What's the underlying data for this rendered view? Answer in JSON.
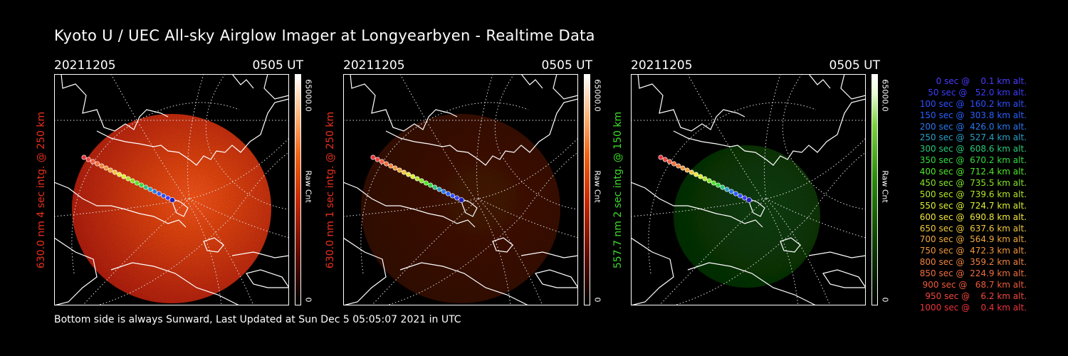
{
  "title": "Kyoto U / UEC All-sky Airglow Imager at Longyearbyen - Realtime Data",
  "footer": "Bottom side is always Sunward, Last Updated at Sun Dec  5 05:05:07 2021 in UTC",
  "panels": [
    {
      "date": "20211205",
      "time": "0505 UT",
      "ylabel": "630.0 nm 4 sec intg. @ 250 km",
      "label_color": "#e8301c",
      "cb_max": "65000.0",
      "cb_unit": "Raw Cnt",
      "cb_min": "0",
      "colormap": "red",
      "brightness": 0.78
    },
    {
      "date": "20211205",
      "time": "0505 UT",
      "ylabel": "630.0 nm 1 sec intg. @ 250 km",
      "label_color": "#e8301c",
      "cb_max": "65000.0",
      "cb_unit": "Raw Cnt",
      "cb_min": "0",
      "colormap": "red",
      "brightness": 0.22
    },
    {
      "date": "20211205",
      "time": "0505 UT",
      "ylabel": "557.7 nm 2 sec intg. @ 150 km",
      "label_color": "#3cdc28",
      "cb_max": "65000.0",
      "cb_unit": "Raw Cnt",
      "cb_min": "0",
      "colormap": "green",
      "brightness": 0.32
    }
  ],
  "legend": [
    {
      "text": "   0 sec @    0.1 km alt.",
      "color": "#4a3cff"
    },
    {
      "text": "  50 sec @   52.0 km alt.",
      "color": "#3c3cff"
    },
    {
      "text": " 100 sec @  160.2 km alt.",
      "color": "#2c50ff"
    },
    {
      "text": " 150 sec @  303.8 km alt.",
      "color": "#2860ff"
    },
    {
      "text": " 200 sec @  426.0 km alt.",
      "color": "#2878f0"
    },
    {
      "text": " 250 sec @  527.4 km alt.",
      "color": "#28a0c8"
    },
    {
      "text": " 300 sec @  608.6 km alt.",
      "color": "#28c878"
    },
    {
      "text": " 350 sec @  670.2 km alt.",
      "color": "#32dc3c"
    },
    {
      "text": " 400 sec @  712.4 km alt.",
      "color": "#50e628"
    },
    {
      "text": " 450 sec @  735.5 km alt.",
      "color": "#82e628"
    },
    {
      "text": " 500 sec @  739.6 km alt.",
      "color": "#b4e628"
    },
    {
      "text": " 550 sec @  724.7 km alt.",
      "color": "#dcf032"
    },
    {
      "text": " 600 sec @  690.8 km alt.",
      "color": "#f0e63c"
    },
    {
      "text": " 650 sec @  637.6 km alt.",
      "color": "#f0c83c"
    },
    {
      "text": " 700 sec @  564.9 km alt.",
      "color": "#f0aa3c"
    },
    {
      "text": " 750 sec @  472.3 km alt.",
      "color": "#f0963c"
    },
    {
      "text": " 800 sec @  359.2 km alt.",
      "color": "#f0823c"
    },
    {
      "text": " 850 sec @  224.9 km alt.",
      "color": "#f06e3c"
    },
    {
      "text": " 900 sec @   68.7 km alt.",
      "color": "#f05a3c"
    },
    {
      "text": " 950 sec @    6.2 km alt.",
      "color": "#f0463c"
    },
    {
      "text": "1000 sec @    0.4 km alt.",
      "color": "#f0323c"
    }
  ]
}
